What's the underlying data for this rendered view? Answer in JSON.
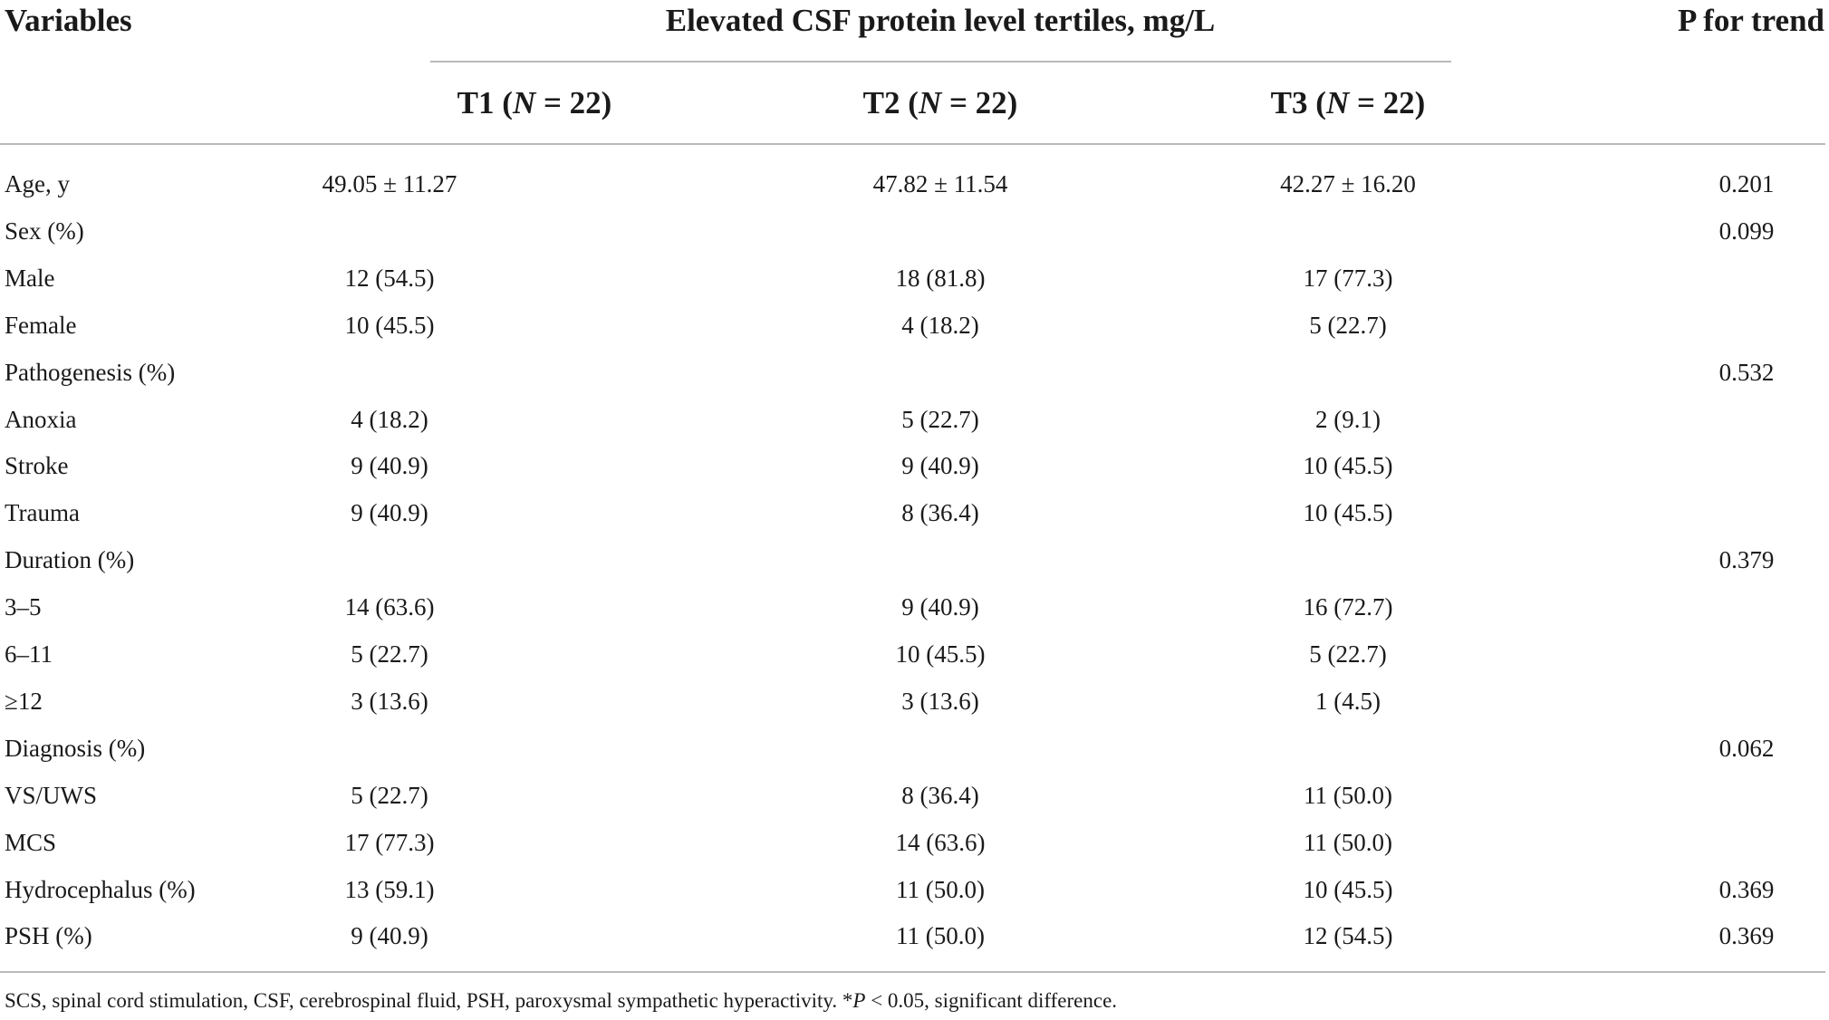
{
  "header": {
    "variables_label": "Variables",
    "group_label": "Elevated CSF protein level tertiles, mg/L",
    "p_trend_label": "P for trend",
    "tertiles": [
      {
        "name": "T1",
        "n_var": "N",
        "n_rest": " = 22)"
      },
      {
        "name": "T2",
        "n_var": "N",
        "n_rest": " = 22)"
      },
      {
        "name": "T3",
        "n_var": "N",
        "n_rest": " = 22)"
      }
    ]
  },
  "rows": [
    {
      "variable": "Age, y",
      "t1": "49.05 ± 11.27",
      "t2": "47.82 ± 11.54",
      "t3": "42.27 ± 16.20",
      "p": "0.201"
    },
    {
      "variable": "Sex (%)",
      "t1": "",
      "t2": "",
      "t3": "",
      "p": "0.099"
    },
    {
      "variable": "Male",
      "t1": "12 (54.5)",
      "t2": "18 (81.8)",
      "t3": "17 (77.3)",
      "p": ""
    },
    {
      "variable": "Female",
      "t1": "10 (45.5)",
      "t2": "4 (18.2)",
      "t3": "5 (22.7)",
      "p": ""
    },
    {
      "variable": "Pathogenesis (%)",
      "t1": "",
      "t2": "",
      "t3": "",
      "p": "0.532"
    },
    {
      "variable": "Anoxia",
      "t1": "4 (18.2)",
      "t2": "5 (22.7)",
      "t3": "2 (9.1)",
      "p": ""
    },
    {
      "variable": "Stroke",
      "t1": "9 (40.9)",
      "t2": "9 (40.9)",
      "t3": "10 (45.5)",
      "p": ""
    },
    {
      "variable": "Trauma",
      "t1": "9 (40.9)",
      "t2": "8 (36.4)",
      "t3": "10 (45.5)",
      "p": ""
    },
    {
      "variable": "Duration (%)",
      "t1": "",
      "t2": "",
      "t3": "",
      "p": "0.379"
    },
    {
      "variable": "3–5",
      "t1": "14 (63.6)",
      "t2": "9 (40.9)",
      "t3": "16 (72.7)",
      "p": ""
    },
    {
      "variable": "6–11",
      "t1": "5 (22.7)",
      "t2": "10 (45.5)",
      "t3": "5 (22.7)",
      "p": ""
    },
    {
      "variable": "≥12",
      "t1": "3 (13.6)",
      "t2": "3 (13.6)",
      "t3": "1 (4.5)",
      "p": ""
    },
    {
      "variable": "Diagnosis (%)",
      "t1": "",
      "t2": "",
      "t3": "",
      "p": "0.062"
    },
    {
      "variable": "VS/UWS",
      "t1": "5 (22.7)",
      "t2": "8 (36.4)",
      "t3": "11 (50.0)",
      "p": ""
    },
    {
      "variable": "MCS",
      "t1": "17 (77.3)",
      "t2": "14 (63.6)",
      "t3": "11 (50.0)",
      "p": ""
    },
    {
      "variable": "Hydrocephalus (%)",
      "t1": "13 (59.1)",
      "t2": "11 (50.0)",
      "t3": "10 (45.5)",
      "p": "0.369"
    },
    {
      "variable": "PSH (%)",
      "t1": "9 (40.9)",
      "t2": "11 (50.0)",
      "t3": "12 (54.5)",
      "p": "0.369"
    }
  ],
  "footnote": {
    "text_before": "SCS, spinal cord stimulation, CSF, cerebrospinal fluid, PSH, paroxysmal sympathetic hyperactivity. *",
    "p_symbol": "P",
    "text_after": " < 0.05, significant difference."
  }
}
